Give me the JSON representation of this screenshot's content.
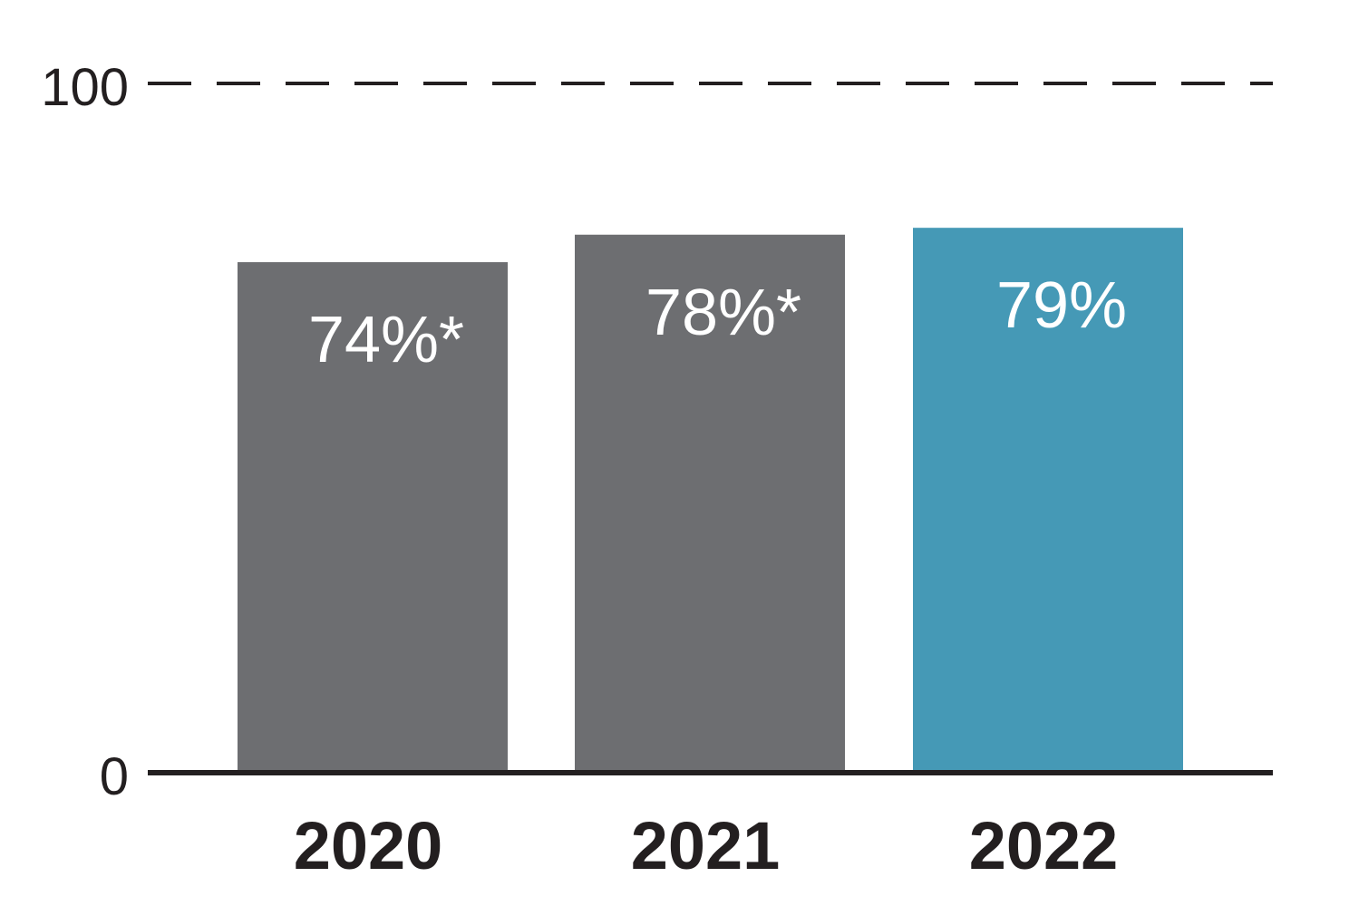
{
  "chart_data": {
    "type": "bar",
    "title": "",
    "xlabel": "",
    "ylabel": "",
    "categories": [
      "2020",
      "2021",
      "2022"
    ],
    "values": [
      74,
      78,
      79
    ],
    "value_labels": [
      "74%*",
      "78%*",
      "79%"
    ],
    "ylim": [
      0,
      100
    ],
    "y_tick_labels": [
      "0",
      "100"
    ],
    "reference_line": {
      "value": 100,
      "style": "dashed"
    },
    "grid": false,
    "legend": "none",
    "colors": {
      "bars": [
        "#6d6e71",
        "#6d6e71",
        "#4599b6"
      ],
      "axis": "#231f20",
      "value_text": "#ffffff"
    }
  }
}
